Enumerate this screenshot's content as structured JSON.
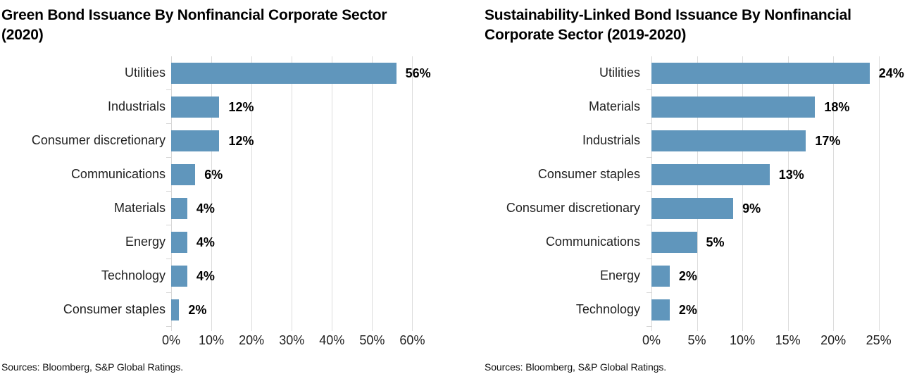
{
  "page": {
    "background": "#ffffff"
  },
  "colors": {
    "bar": "#6096BC",
    "gridline": "#dcdcdc",
    "axis": "#d6d6d6",
    "label_text": "#1f1f1f",
    "value_text": "#000000"
  },
  "chart_data": [
    {
      "type": "bar",
      "orientation": "horizontal",
      "title": "Green Bond Issuance By Nonfinancial Corporate Sector (2020)",
      "categories": [
        "Utilities",
        "Industrials",
        "Consumer discretionary",
        "Communications",
        "Materials",
        "Energy",
        "Technology",
        "Consumer staples"
      ],
      "values": [
        56,
        12,
        12,
        6,
        4,
        4,
        4,
        2
      ],
      "value_labels": [
        "56%",
        "12%",
        "12%",
        "6%",
        "4%",
        "4%",
        "4%",
        "2%"
      ],
      "xlabel": "",
      "ylabel": "",
      "xlim": [
        0,
        61.5
      ],
      "xticks": [
        0,
        10,
        20,
        30,
        40,
        50,
        60
      ],
      "xtick_labels": [
        "0%",
        "10%",
        "20%",
        "30%",
        "40%",
        "50%",
        "60%"
      ],
      "grid": true,
      "legend": false,
      "source": "Sources: Bloomberg, S&P Global Ratings."
    },
    {
      "type": "bar",
      "orientation": "horizontal",
      "title": "Sustainability-Linked Bond Issuance By Nonfinancial Corporate Sector (2019-2020)",
      "categories": [
        "Utilities",
        "Materials",
        "Industrials",
        "Consumer staples",
        "Consumer discretionary",
        "Communications",
        "Energy",
        "Technology"
      ],
      "values": [
        24,
        18,
        17,
        13,
        9,
        5,
        2,
        2
      ],
      "value_labels": [
        "24%",
        "18%",
        "17%",
        "13%",
        "9%",
        "5%",
        "2%",
        "2%"
      ],
      "xlabel": "",
      "ylabel": "",
      "xlim": [
        0,
        25.8
      ],
      "xticks": [
        0,
        5,
        10,
        15,
        20,
        25
      ],
      "xtick_labels": [
        "0%",
        "5%",
        "10%",
        "15%",
        "20%",
        "25%"
      ],
      "grid": true,
      "legend": false,
      "source": "Sources: Bloomberg, S&P Global Ratings."
    }
  ]
}
